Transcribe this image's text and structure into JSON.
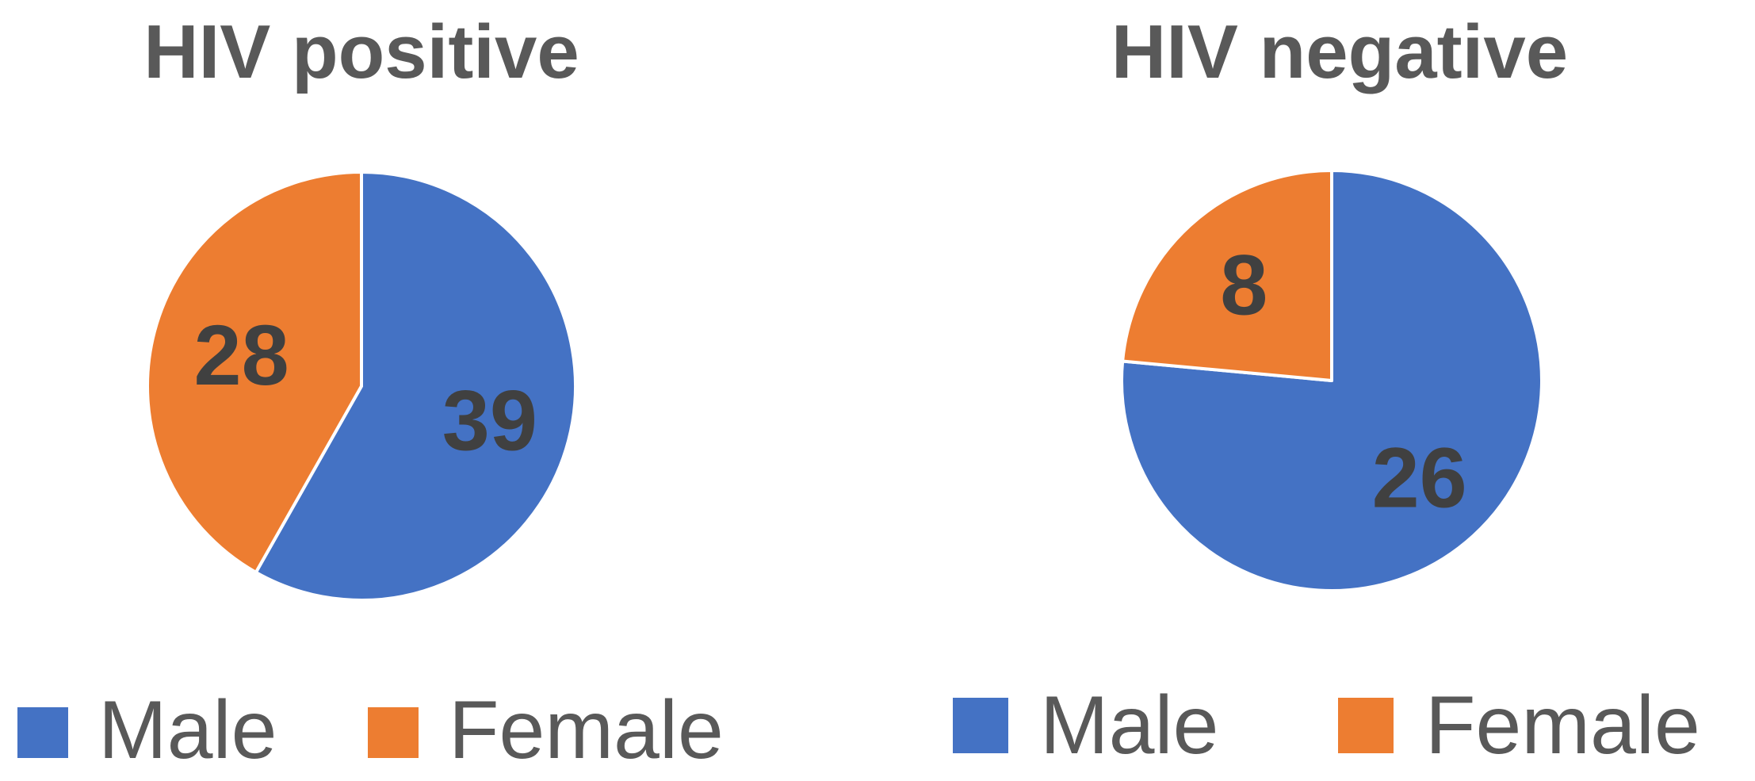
{
  "chart_data": [
    {
      "type": "pie",
      "title": "HIV positive",
      "categories": [
        "Male",
        "Female"
      ],
      "values": [
        39,
        28
      ],
      "colors": [
        "#4472C4",
        "#ED7D31"
      ],
      "legend": {
        "position": "bottom",
        "entries": [
          "Male",
          "Female"
        ]
      },
      "data_labels": [
        "39",
        "28"
      ]
    },
    {
      "type": "pie",
      "title": "HIV negative",
      "categories": [
        "Male",
        "Female"
      ],
      "values": [
        26,
        8
      ],
      "colors": [
        "#4472C4",
        "#ED7D31"
      ],
      "legend": {
        "position": "bottom",
        "entries": [
          "Male",
          "Female"
        ]
      },
      "data_labels": [
        "26",
        "8"
      ]
    }
  ]
}
